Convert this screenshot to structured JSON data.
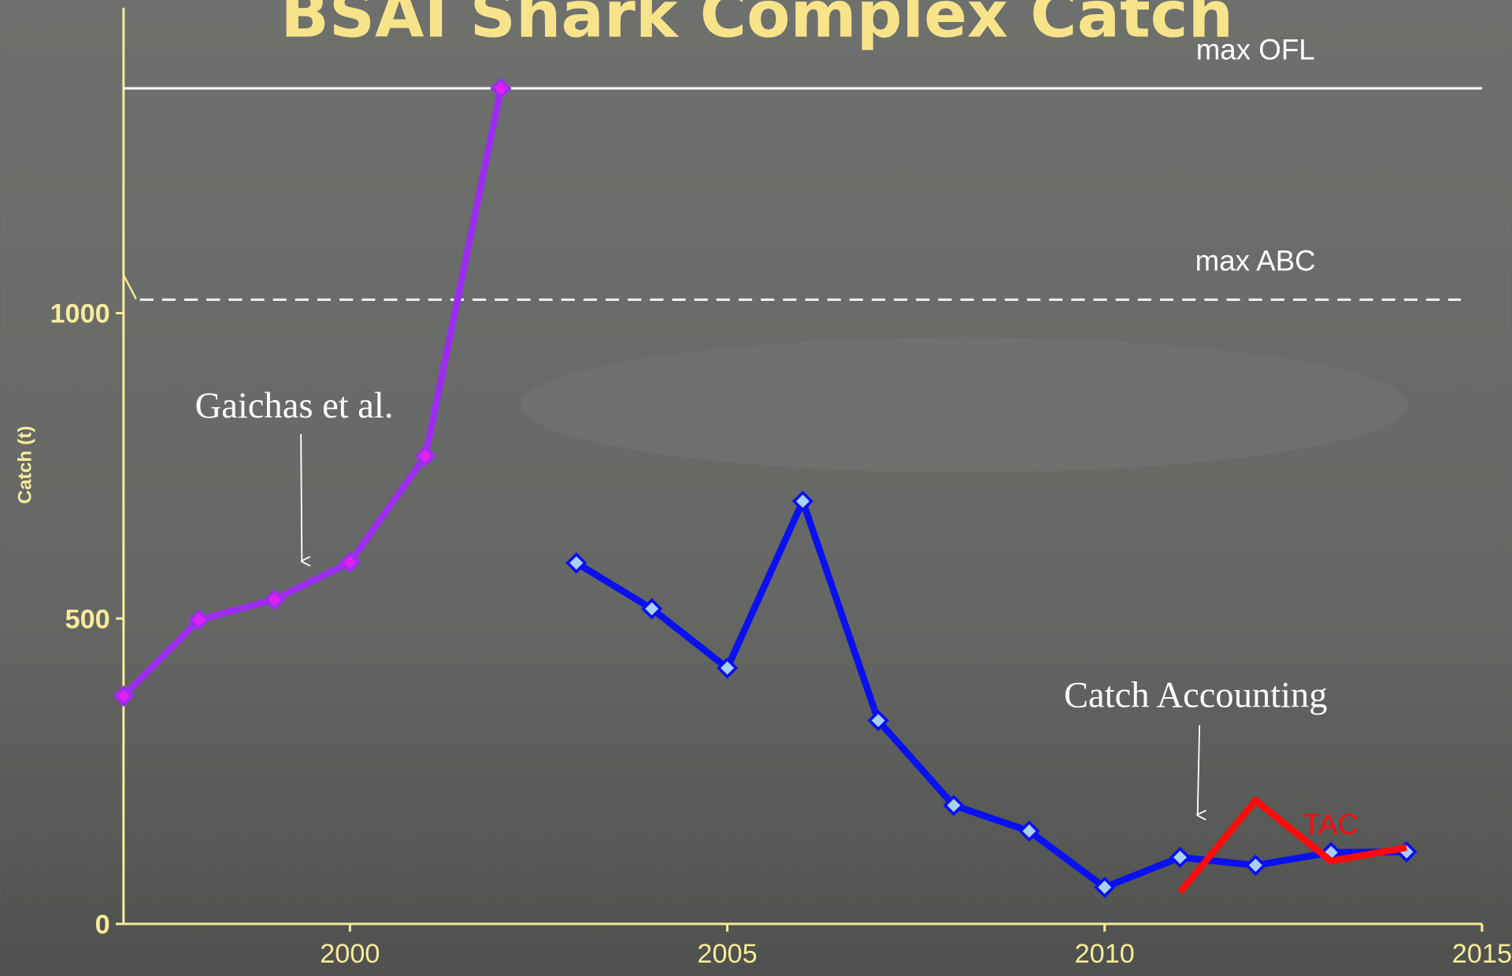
{
  "chart_data": {
    "type": "line",
    "title": "BSAI Shark Complex Catch",
    "y_label": "Catch (t)",
    "xlim": [
      1997,
      2015
    ],
    "xticks": [
      2000,
      2005,
      2010,
      2015
    ],
    "ylim": [
      0,
      1500
    ],
    "yticks": [
      0,
      500,
      1000
    ],
    "series": [
      {
        "color": "#9b2cf0",
        "marker_color": "#e020f0",
        "x": [
          1997,
          1998,
          1999,
          2000,
          2001,
          2002
        ],
        "values": [
          373,
          498,
          531,
          592,
          766,
          1368
        ]
      },
      {
        "color": "#0a10f0",
        "marker_color": "#a8d0f0",
        "x": [
          2003,
          2004,
          2005,
          2006,
          2007,
          2008,
          2009,
          2010,
          2011,
          2012,
          2013,
          2014
        ],
        "values": [
          591,
          516,
          419,
          692,
          333,
          194,
          152,
          60,
          109,
          96,
          117,
          118
        ]
      },
      {
        "name": "TAC",
        "color": "#ff0a0a",
        "x": [
          2011,
          2012,
          2013,
          2014
        ],
        "values": [
          52,
          202,
          103,
          125
        ]
      }
    ],
    "reference_lines": [
      {
        "name": "max OFL",
        "value": 1368,
        "style": "solid"
      },
      {
        "name": "max ABC",
        "value": 1022,
        "style": "dashed"
      }
    ],
    "annotations": [
      "Gaichas et al.",
      "Catch Accounting"
    ]
  }
}
